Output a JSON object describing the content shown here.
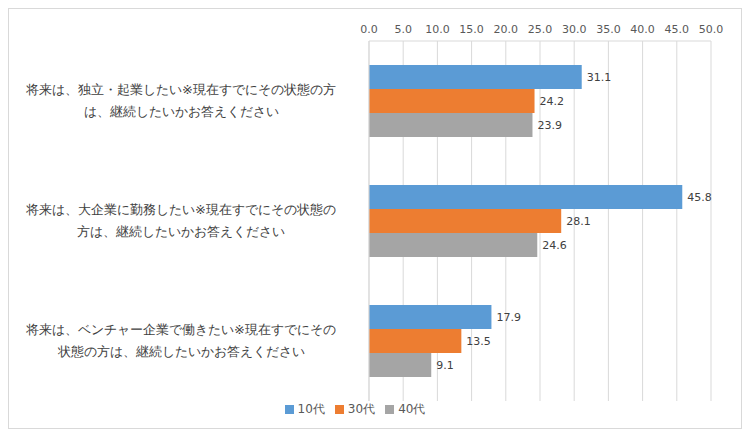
{
  "chart_data": {
    "type": "bar",
    "orientation": "horizontal",
    "categories": [
      "将来は、独立・起業したい※現在すでにその状態の方は、継続したいかお答えください",
      "将来は、大企業に勤務したい※現在すでにその状態の方は、継続したいかお答えください",
      "将来は、ベンチャー企業で働きたい※現在すでにその状態の方は、継続したいかお答えください"
    ],
    "series": [
      {
        "name": "10代",
        "color": "#5b9bd5",
        "values": [
          31.1,
          45.8,
          17.9
        ]
      },
      {
        "name": "30代",
        "color": "#ed7d31",
        "values": [
          24.2,
          28.1,
          13.5
        ]
      },
      {
        "name": "40代",
        "color": "#a5a5a5",
        "values": [
          23.9,
          24.6,
          9.1
        ]
      }
    ],
    "xlim": [
      0,
      50
    ],
    "xticks": [
      {
        "value": 0,
        "label": "0.0"
      },
      {
        "value": 5,
        "label": "5.0"
      },
      {
        "value": 10,
        "label": "10.0"
      },
      {
        "value": 15,
        "label": "15.0"
      },
      {
        "value": 20,
        "label": "20.0"
      },
      {
        "value": 25,
        "label": "25.0"
      },
      {
        "value": 30,
        "label": "30.0"
      },
      {
        "value": 35,
        "label": "35.0"
      },
      {
        "value": 40,
        "label": "40.0"
      },
      {
        "value": 45,
        "label": "45.0"
      },
      {
        "value": 50,
        "label": "50.0"
      }
    ],
    "grid": true,
    "data_labels": true,
    "legend": "bottom"
  }
}
